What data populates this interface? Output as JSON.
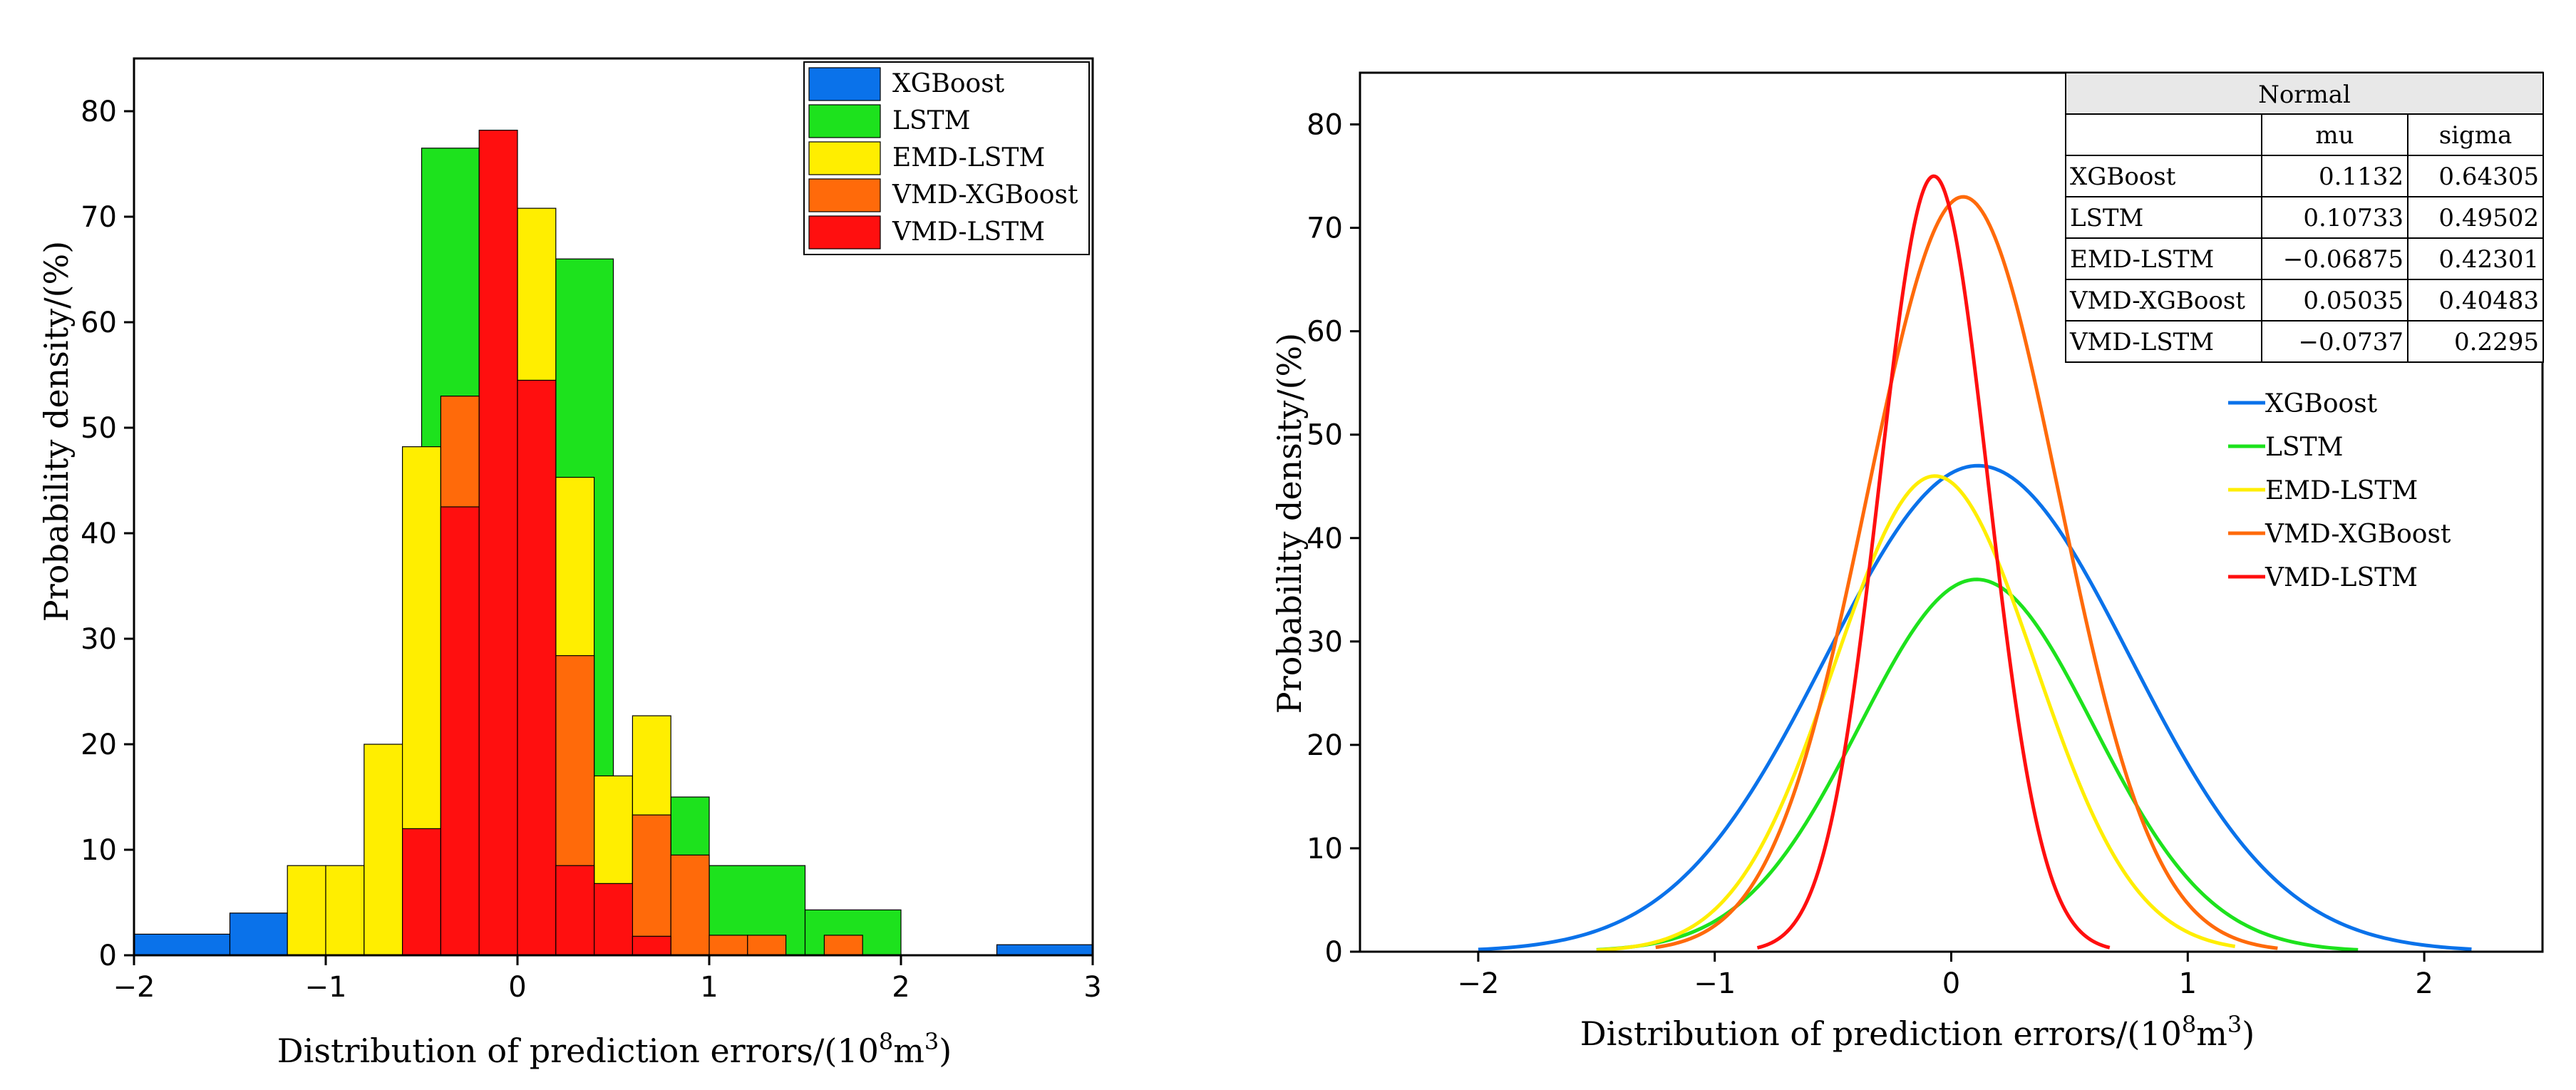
{
  "colors": {
    "XGBoost": "#0a72ea",
    "LSTM": "#1de21d",
    "EMD-LSTM": "#ffee00",
    "VMD-XGBoost": "#ff6a0a",
    "VMD-LSTM": "#ff0f0f"
  },
  "chart_data": [
    {
      "type": "bar",
      "subtype": "histogram",
      "title": "",
      "xlabel": "Distribution of prediction errors/(10",
      "xlabel_sup1": "8",
      "xlabel_mid": "m",
      "xlabel_sup2": "3",
      "xlabel_end": ")",
      "ylabel": "Probability density/(%)",
      "xlim": [
        -2,
        3
      ],
      "ylim": [
        0,
        85
      ],
      "xticks": [
        "−2",
        "−1",
        "0",
        "1",
        "2",
        "3"
      ],
      "yticks": [
        "0",
        "10",
        "20",
        "30",
        "40",
        "50",
        "60",
        "70",
        "80"
      ],
      "legend": [
        "XGBoost",
        "LSTM",
        "EMD-LSTM",
        "VMD-XGBoost",
        "VMD-LSTM"
      ],
      "legend_position": "top-right",
      "series": [
        {
          "name": "XGBoost",
          "bars": [
            [
              -2.0,
              -1.5,
              2
            ],
            [
              -1.5,
              -1.2,
              4
            ],
            [
              2.5,
              3.0,
              1
            ]
          ]
        },
        {
          "name": "LSTM",
          "bars": [
            [
              -0.5,
              -0.2,
              76.5
            ],
            [
              0.2,
              0.5,
              66
            ],
            [
              0.8,
              1.0,
              15
            ],
            [
              1.0,
              1.5,
              8.5
            ],
            [
              1.5,
              2.0,
              4.3
            ]
          ]
        },
        {
          "name": "EMD-LSTM",
          "bars": [
            [
              -1.2,
              -1.0,
              8.5
            ],
            [
              -1.0,
              -0.8,
              8.5
            ],
            [
              -0.8,
              -0.6,
              20
            ],
            [
              -0.6,
              -0.4,
              48.2
            ],
            [
              0.0,
              0.2,
              70.8
            ],
            [
              0.2,
              0.4,
              45.3
            ],
            [
              0.4,
              0.6,
              17
            ],
            [
              0.6,
              0.8,
              22.7
            ]
          ]
        },
        {
          "name": "VMD-XGBoost",
          "bars": [
            [
              -0.4,
              -0.2,
              53
            ],
            [
              0.2,
              0.4,
              28.4
            ],
            [
              0.6,
              0.8,
              13.3
            ],
            [
              0.8,
              1.0,
              9.5
            ],
            [
              1.0,
              1.2,
              1.9
            ],
            [
              1.2,
              1.4,
              1.9
            ],
            [
              1.6,
              1.8,
              1.9
            ]
          ]
        },
        {
          "name": "VMD-LSTM",
          "bars": [
            [
              -0.6,
              -0.4,
              12
            ],
            [
              -0.4,
              -0.2,
              42.5
            ],
            [
              -0.2,
              0.0,
              78.2
            ],
            [
              0.0,
              0.2,
              54.5
            ],
            [
              0.2,
              0.4,
              8.5
            ],
            [
              0.4,
              0.6,
              6.8
            ],
            [
              0.6,
              0.8,
              1.8
            ]
          ]
        }
      ]
    },
    {
      "type": "line",
      "subtype": "normal-fit",
      "title": "",
      "xlabel": "Distribution of prediction errors/(10",
      "xlabel_sup1": "8",
      "xlabel_mid": "m",
      "xlabel_sup2": "3",
      "xlabel_end": ")",
      "ylabel": "Probability density/(%)",
      "xlim": [
        -2.5,
        2.5
      ],
      "ylim": [
        0,
        85
      ],
      "xticks": [
        "−2",
        "−1",
        "0",
        "1",
        "2"
      ],
      "yticks": [
        "0",
        "10",
        "20",
        "30",
        "40",
        "50",
        "60",
        "70",
        "80"
      ],
      "legend": [
        "XGBoost",
        "LSTM",
        "EMD-LSTM",
        "VMD-XGBoost",
        "VMD-LSTM"
      ],
      "legend_position": "right",
      "table": {
        "title": "Normal",
        "headers": [
          "",
          "mu",
          "sigma"
        ],
        "rows": [
          [
            "XGBoost",
            "0.1132",
            "0.64305"
          ],
          [
            "LSTM",
            "0.10733",
            "0.49502"
          ],
          [
            "EMD-LSTM",
            "−0.06875",
            "0.42301"
          ],
          [
            "VMD-XGBoost",
            "0.05035",
            "0.40483"
          ],
          [
            "VMD-LSTM",
            "−0.0737",
            "0.2295"
          ]
        ]
      },
      "series": [
        {
          "name": "XGBoost",
          "mu": 0.1132,
          "peak": 47,
          "x_range": [
            -2.0,
            2.2
          ]
        },
        {
          "name": "LSTM",
          "mu": 0.10733,
          "peak": 36,
          "x_range": [
            -1.5,
            1.72
          ]
        },
        {
          "name": "EMD-LSTM",
          "mu": -0.06875,
          "peak": 46,
          "x_range": [
            -1.5,
            1.2
          ]
        },
        {
          "name": "VMD-XGBoost",
          "mu": 0.05035,
          "peak": 73,
          "x_range": [
            -1.25,
            1.38
          ]
        },
        {
          "name": "VMD-LSTM",
          "mu": -0.0737,
          "peak": 75,
          "x_range": [
            -0.82,
            0.67
          ]
        }
      ]
    }
  ]
}
